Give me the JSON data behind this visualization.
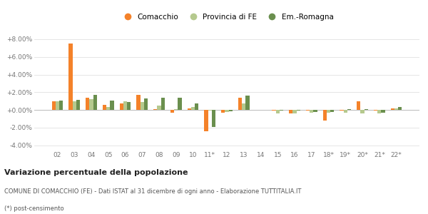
{
  "categories": [
    "02",
    "03",
    "04",
    "05",
    "06",
    "07",
    "08",
    "09",
    "10",
    "11*",
    "12",
    "13",
    "14",
    "15",
    "16",
    "17",
    "18*",
    "19*",
    "20*",
    "21*",
    "22*"
  ],
  "comacchio": [
    1.0,
    7.5,
    1.4,
    0.6,
    0.7,
    1.7,
    0.1,
    -0.3,
    0.2,
    -2.4,
    -0.3,
    1.4,
    0.0,
    -0.1,
    -0.4,
    -0.1,
    -1.2,
    -0.1,
    1.0,
    -0.1,
    0.2
  ],
  "provincia_fe": [
    1.0,
    1.0,
    1.2,
    0.3,
    1.0,
    0.9,
    0.5,
    0.1,
    0.3,
    -0.1,
    -0.2,
    0.7,
    0.0,
    -0.4,
    -0.4,
    -0.3,
    -0.3,
    -0.3,
    -0.4,
    -0.4,
    0.2
  ],
  "emilia_romagna": [
    1.1,
    1.15,
    1.7,
    1.1,
    0.9,
    1.3,
    1.4,
    1.35,
    0.75,
    -1.9,
    -0.15,
    1.6,
    0.0,
    -0.1,
    -0.1,
    -0.2,
    -0.2,
    0.1,
    0.1,
    -0.3,
    0.3
  ],
  "color_comacchio": "#f4822a",
  "color_provincia": "#b5c98e",
  "color_emilia": "#6a8f4e",
  "legend_labels": [
    "Comacchio",
    "Provincia di FE",
    "Em.-Romagna"
  ],
  "title_bold": "Variazione percentuale della popolazione",
  "subtitle": "COMUNE DI COMACCHIO (FE) - Dati ISTAT al 31 dicembre di ogni anno - Elaborazione TUTTITALIA.IT",
  "footnote": "(*) post-censimento",
  "ylim": [
    -4.5,
    8.8
  ],
  "yticks": [
    -4.0,
    -2.0,
    0.0,
    2.0,
    4.0,
    6.0,
    8.0
  ],
  "bg_color": "#ffffff",
  "grid_color": "#e0e0e0",
  "bar_width": 0.22
}
